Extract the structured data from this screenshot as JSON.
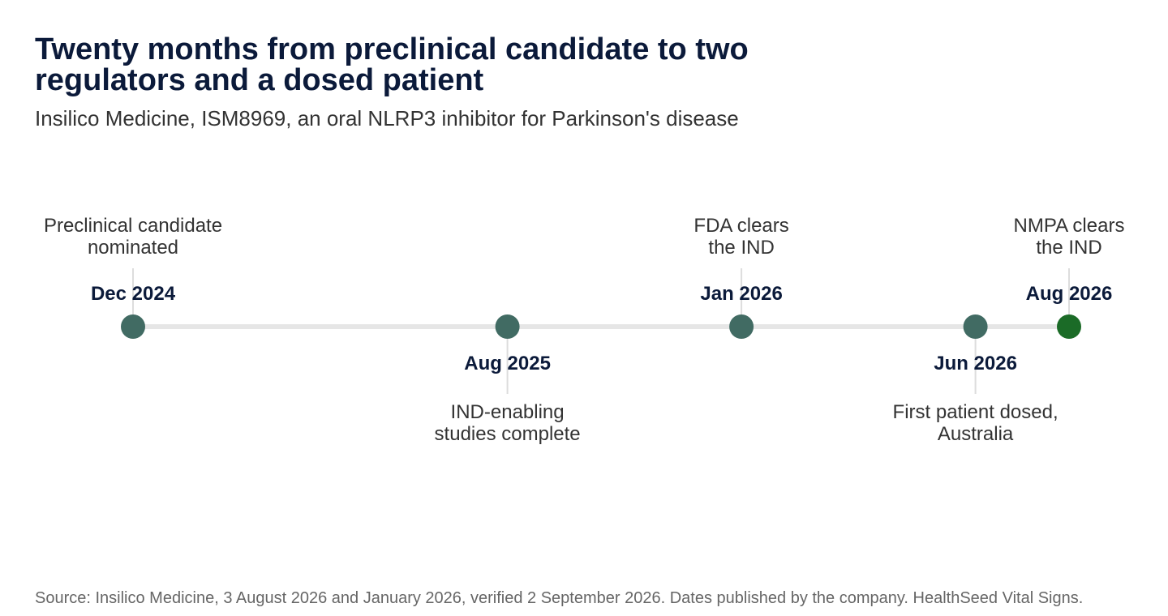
{
  "header": {
    "title": "Twenty months from preclinical candidate to two regulators and a dosed patient",
    "subtitle": "Insilico Medicine, ISM8969, an oral NLRP3 inhibitor for Parkinson's disease"
  },
  "footer": {
    "source": "Source: Insilico Medicine, 3 August 2026 and January 2026, verified 2 September 2026. Dates published by the company. HealthSeed Vital Signs."
  },
  "colors": {
    "track": "#e6e6e6",
    "milestone": "#416b63",
    "final_milestone": "#1b6b27",
    "date_text": "#0b1a3a",
    "label_text": "#333333",
    "leader": "#dddddd"
  },
  "milestones": [
    {
      "date": "Dec 2024",
      "label": [
        "Preclinical candidate",
        "nominated"
      ],
      "side": "above",
      "final": false
    },
    {
      "date": "Aug 2025",
      "label": [
        "IND-enabling",
        "studies complete"
      ],
      "side": "below",
      "final": false
    },
    {
      "date": "Jan 2026",
      "label": [
        "FDA clears",
        "the IND"
      ],
      "side": "above",
      "final": false
    },
    {
      "date": "Jun 2026",
      "label": [
        "First patient dosed,",
        "Australia"
      ],
      "side": "below",
      "final": false
    },
    {
      "date": "Aug 2026",
      "label": [
        "NMPA clears",
        "the IND"
      ],
      "side": "above",
      "final": true
    }
  ]
}
